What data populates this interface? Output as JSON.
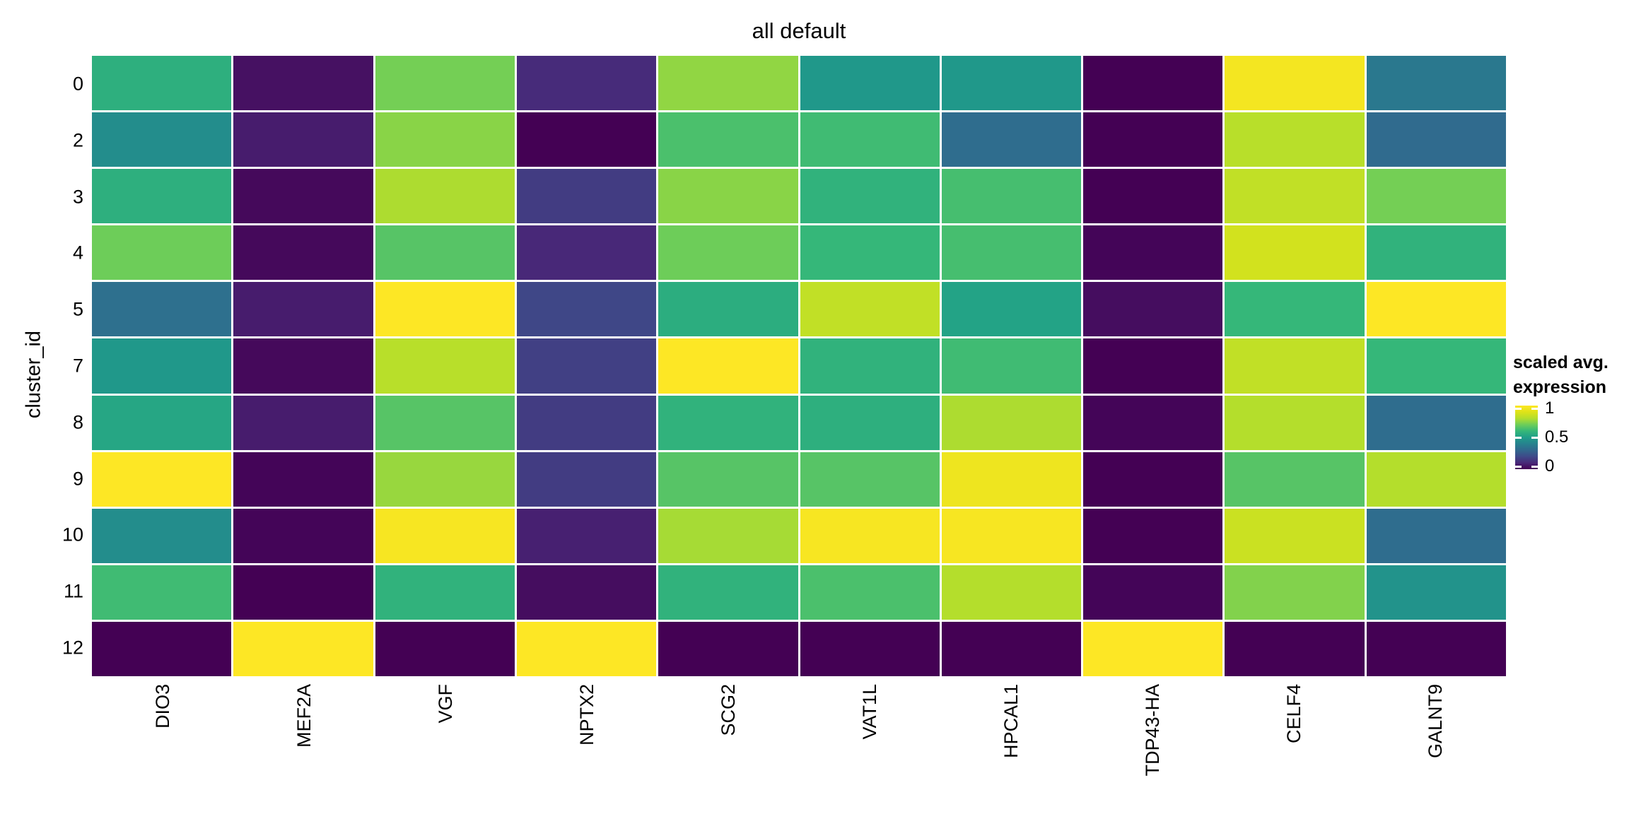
{
  "title": "all default",
  "y_axis": {
    "label": "cluster_id"
  },
  "legend": {
    "title_line1": "scaled avg.",
    "title_line2": "expression",
    "ticks": [
      {
        "label": "1",
        "value": 1.0
      },
      {
        "label": "0.5",
        "value": 0.5
      },
      {
        "label": "0",
        "value": 0.0
      }
    ]
  },
  "colors": {
    "background": "#ffffff",
    "text": "#000000",
    "cell_gap": "#ffffff",
    "viridis_low": "#440154",
    "viridis_mid": "#1f9e89",
    "viridis_high": "#fde725"
  },
  "chart_data": {
    "type": "heatmap",
    "title": "all default",
    "ylabel": "cluster_id",
    "legend_title": "scaled avg. expression",
    "colormap": "viridis",
    "value_range": [
      0,
      1
    ],
    "rows": [
      "0",
      "2",
      "3",
      "4",
      "5",
      "7",
      "8",
      "9",
      "10",
      "11",
      "12"
    ],
    "columns": [
      "DIO3",
      "MEF2A",
      "VGF",
      "NPTX2",
      "SCG2",
      "VAT1L",
      "HPCAL1",
      "TDP43-HA",
      "CELF4",
      "GALNT9"
    ],
    "values": [
      [
        0.57,
        0.04,
        0.71,
        0.11,
        0.75,
        0.48,
        0.48,
        0.0,
        0.97,
        0.36
      ],
      [
        0.44,
        0.07,
        0.74,
        0.0,
        0.64,
        0.62,
        0.32,
        0.0,
        0.81,
        0.31
      ],
      [
        0.57,
        0.02,
        0.79,
        0.16,
        0.74,
        0.58,
        0.63,
        0.0,
        0.83,
        0.71
      ],
      [
        0.7,
        0.02,
        0.66,
        0.1,
        0.7,
        0.6,
        0.63,
        0.01,
        0.87,
        0.58
      ],
      [
        0.33,
        0.07,
        1.0,
        0.19,
        0.56,
        0.83,
        0.52,
        0.03,
        0.6,
        1.0
      ],
      [
        0.48,
        0.02,
        0.81,
        0.17,
        1.0,
        0.58,
        0.62,
        0.0,
        0.83,
        0.6
      ],
      [
        0.53,
        0.07,
        0.66,
        0.16,
        0.58,
        0.57,
        0.79,
        0.01,
        0.8,
        0.32
      ],
      [
        1.0,
        0.01,
        0.76,
        0.16,
        0.66,
        0.66,
        0.95,
        0.0,
        0.66,
        0.8
      ],
      [
        0.44,
        0.01,
        0.98,
        0.08,
        0.78,
        0.98,
        0.98,
        0.0,
        0.85,
        0.32
      ],
      [
        0.62,
        0.0,
        0.58,
        0.03,
        0.58,
        0.64,
        0.8,
        0.01,
        0.73,
        0.46
      ],
      [
        0.0,
        1.0,
        0.0,
        1.0,
        0.0,
        0.0,
        0.0,
        1.0,
        0.0,
        0.0
      ]
    ]
  }
}
